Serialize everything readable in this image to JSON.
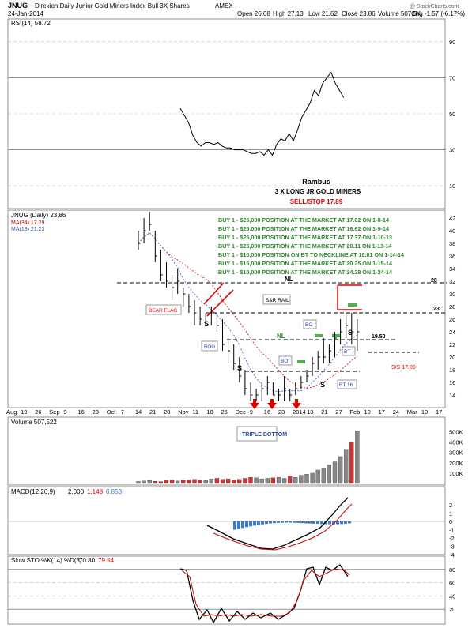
{
  "header": {
    "symbol": "JNUG",
    "name": "Direxion Daily Junior Gold Miners Index Bull 3X Shares",
    "exchange": "AMEX",
    "date": "24-Jan-2014",
    "open": "Open 26.68",
    "high": "High 27.13",
    "low": "Low 21.62",
    "close": "Close 23.86",
    "volume": "Volume 507.5K",
    "change": "Chg -1.57 (-6.17%)",
    "watermark": "@ StockCharts.com"
  },
  "rsi": {
    "label": "RSI(14) 58.72",
    "ticks": [
      "90",
      "70",
      "50",
      "30",
      "10"
    ],
    "values": [
      53,
      49,
      45,
      38,
      34,
      32,
      34,
      34,
      33,
      34,
      32,
      31,
      31,
      30,
      30,
      30,
      29,
      28,
      28,
      29,
      27,
      30,
      27,
      33,
      36,
      35,
      39,
      35,
      41,
      48,
      52,
      56,
      63,
      60,
      67,
      70,
      73,
      67,
      63,
      59
    ]
  },
  "annotation": {
    "author": "Rambus",
    "subtitle": "3 X LONG JR GOLD MINERS",
    "stop": "SELL/STOP 17.89"
  },
  "price": {
    "label": "JNUG (Daily) 23.86",
    "ma34": "MA(34) 17.29",
    "ma13": "MA(13) 21.23",
    "ticks": [
      "42",
      "40",
      "38",
      "36",
      "34",
      "32",
      "30",
      "28",
      "26",
      "24",
      "22",
      "20",
      "18",
      "16",
      "14"
    ],
    "buys": [
      "BUY 1 - $25,000 POSITION AT THE MARKET AT 17.02 ON 1-8-14",
      "BUY 1 - $25,000 POSITION AT THE MARKET AT 16.62 ON 1-9-14",
      "BUY 1 - $25,000 POSITION AT THE MARKET AT 17.37 ON 1-10-13",
      "BUY 1 - $25,000 POSITION AT THE MARKET AT 20.11 ON 1-13-14",
      "BUY 1 - $10,000 POSITION ON BT TO NECKLINE AT 19.81 ON 1-14-14",
      "BUY 1 - $15,000 POSITION AT THE MARKET AT 20.25 ON 1-15-14",
      "BUY 1 - $10,000 POSITION AT THE MARKET AT 24.28 ON 1-24-14"
    ],
    "labels": {
      "nl": "NL",
      "n28": "28",
      "n23": "23",
      "n1950": "19.50",
      "bear_flag": "BEAR FLAG",
      "snr_rail": "S&R RAIL",
      "bog": "BOG",
      "bo": "BO",
      "bt": "BT",
      "bt16": "BT 16",
      "s": "S",
      "stop": "S/S 17.89",
      "triple": "TRIPLE BOTTOM"
    },
    "bars": [
      [
        40,
        37,
        38
      ],
      [
        42,
        38,
        40
      ],
      [
        43,
        40,
        41
      ],
      [
        40,
        35,
        36
      ],
      [
        37,
        32,
        33
      ],
      [
        35,
        31,
        32
      ],
      [
        33,
        29,
        31
      ],
      [
        34,
        30,
        32
      ],
      [
        31,
        28,
        30
      ],
      [
        30,
        27,
        28
      ],
      [
        29,
        25,
        27
      ],
      [
        28,
        25,
        26
      ],
      [
        27,
        25,
        27
      ],
      [
        28,
        25,
        27
      ],
      [
        27,
        24,
        25
      ],
      [
        26,
        21,
        22
      ],
      [
        23,
        19,
        21
      ],
      [
        22,
        18,
        19
      ],
      [
        20,
        16,
        17
      ],
      [
        18,
        14,
        15
      ],
      [
        16,
        13,
        14
      ],
      [
        15,
        13,
        14
      ],
      [
        16,
        13,
        15
      ],
      [
        17,
        14,
        16
      ],
      [
        16,
        14,
        14
      ],
      [
        15,
        13,
        14
      ],
      [
        17,
        13,
        15
      ],
      [
        15,
        13,
        14
      ],
      [
        16,
        14,
        15
      ],
      [
        17,
        15,
        16
      ],
      [
        18,
        16,
        17
      ],
      [
        20,
        17,
        19
      ],
      [
        21,
        18,
        20
      ],
      [
        23,
        19,
        20
      ],
      [
        22,
        19,
        21
      ],
      [
        24,
        20,
        23
      ],
      [
        26,
        22,
        24
      ],
      [
        27,
        23,
        25
      ],
      [
        27,
        22,
        24
      ],
      [
        26,
        21,
        24
      ]
    ]
  },
  "volume": {
    "label": "Volume 507,522",
    "ticks": [
      "500K",
      "400K",
      "300K",
      "200K",
      "100K"
    ],
    "values": [
      20,
      25,
      30,
      22,
      18,
      28,
      32,
      25,
      30,
      35,
      40,
      30,
      28,
      45,
      50,
      40,
      45,
      35,
      40,
      50,
      60,
      55,
      45,
      50,
      55,
      60,
      50,
      70,
      60,
      80,
      90,
      100,
      130,
      150,
      180,
      210,
      260,
      330,
      400,
      510
    ]
  },
  "macd": {
    "label": "MACD(12,26,9)",
    "value1": "2.000",
    "value2": "1.148",
    "value3": "0.853",
    "ticks": [
      "2",
      "1",
      "0",
      "-1",
      "-2",
      "-3",
      "-4"
    ]
  },
  "sto": {
    "label": "Slow STO %K(14) %D(3)",
    "k": "70.80",
    "d": "79.54",
    "ticks": [
      "80",
      "60",
      "40",
      "20"
    ]
  },
  "xaxis": {
    "labels": [
      "Aug",
      "19",
      "26",
      "Sep",
      "9",
      "16",
      "23",
      "Oct",
      "7",
      "14",
      "21",
      "28",
      "Nov",
      "11",
      "18",
      "25",
      "Dec",
      "9",
      "16",
      "23",
      "2014",
      "13",
      "21",
      "27",
      "Feb",
      "10",
      "17",
      "24",
      "Mar",
      "10",
      "17"
    ]
  },
  "colors": {
    "buy_text": "#2a8a2a",
    "stop_red": "#e00000",
    "bar": "#000000",
    "volume_up": "#888888",
    "volume_down": "#cc3333",
    "macd_hist": "#3a7cc6",
    "ma_red": "#cc0000",
    "ma_blue": "#3355cc"
  }
}
